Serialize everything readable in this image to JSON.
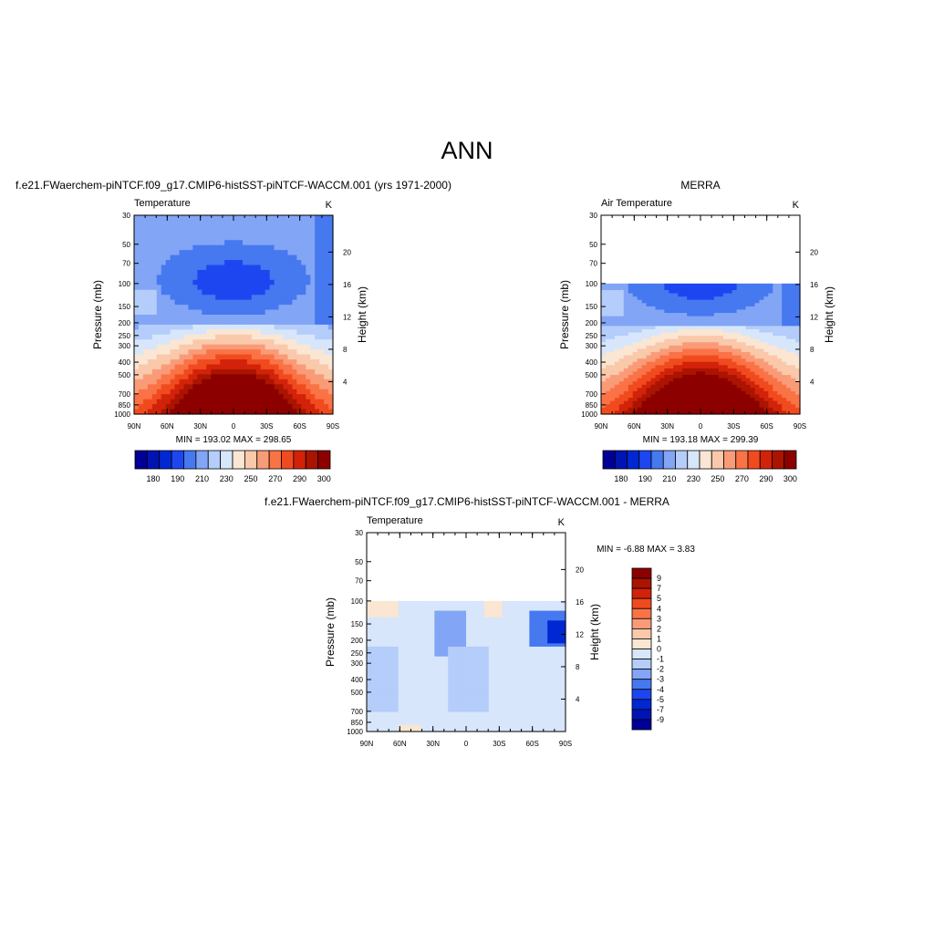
{
  "page": {
    "title": "ANN"
  },
  "panels": {
    "model": {
      "header": "f.e21.FWaerchem-piNTCF.f09_g17.CMIP6-histSST-piNTCF-WACCM.001 (yrs 1971-2000)",
      "left_label": "Temperature",
      "right_label": "K",
      "minmax": "MIN = 193.02  MAX = 298.65"
    },
    "obs": {
      "header": "MERRA",
      "left_label": "Air Temperature",
      "right_label": "K",
      "minmax": "MIN = 193.18  MAX = 299.39"
    },
    "diff": {
      "header": "f.e21.FWaerchem-piNTCF.f09_g17.CMIP6-histSST-piNTCF-WACCM.001 - MERRA",
      "left_label": "Temperature",
      "right_label": "K",
      "minmax": "MIN =  -6.88  MAX =   3.83"
    }
  },
  "axes": {
    "ylabel": "Pressure (mb)",
    "y2label": "Height (km)",
    "pressure_ticks": [
      "30",
      "50",
      "70",
      "100",
      "150",
      "200",
      "250",
      "300",
      "400",
      "500",
      "700",
      "850",
      "1000"
    ],
    "height_ticks": [
      "20",
      "16",
      "12",
      "8",
      "4"
    ],
    "lat_ticks": [
      "90N",
      "60N",
      "30N",
      "0",
      "30S",
      "60S",
      "90S"
    ]
  },
  "colors": {
    "temp_levels": [
      "#000096",
      "#0014b4",
      "#0028d2",
      "#1e46f0",
      "#4678f0",
      "#82a5f5",
      "#b4cdfa",
      "#d7e6fa",
      "#fae6d2",
      "#fac8aa",
      "#fa9b78",
      "#fa7346",
      "#f04b1e",
      "#d2230a",
      "#aa1400",
      "#8c0000"
    ],
    "diff_levels": [
      "#000096",
      "#0014b4",
      "#0028d2",
      "#1e46f0",
      "#4678f0",
      "#82a5f5",
      "#b4cdfa",
      "#d7e6fa",
      "#fae6d2",
      "#fac8aa",
      "#fa9b78",
      "#fa7346",
      "#f04b1e",
      "#d2230a",
      "#aa1400",
      "#8c0000"
    ]
  },
  "chart_data": [
    {
      "type": "heatmap",
      "title": "Temperature",
      "units": "K",
      "x": "latitude (90N to 90S)",
      "y": "pressure (mb), log scale",
      "xlim": [
        "90N",
        "90S"
      ],
      "ylim": [
        1000,
        30
      ],
      "min": 193.02,
      "max": 298.65,
      "colorbar_labels": [
        "180",
        "190",
        "210",
        "230",
        "250",
        "270",
        "290",
        "300"
      ]
    },
    {
      "type": "heatmap",
      "title": "Air Temperature",
      "units": "K",
      "x": "latitude (90N to 90S)",
      "y": "pressure (mb), log scale",
      "xlim": [
        "90N",
        "90S"
      ],
      "ylim": [
        1000,
        30
      ],
      "data_top_pressure": 100,
      "min": 193.18,
      "max": 299.39,
      "colorbar_labels": [
        "180",
        "190",
        "210",
        "230",
        "250",
        "270",
        "290",
        "300"
      ]
    },
    {
      "type": "heatmap",
      "title": "Temperature",
      "units": "K",
      "x": "latitude (90N to 90S)",
      "y": "pressure (mb), log scale",
      "xlim": [
        "90N",
        "90S"
      ],
      "ylim": [
        1000,
        30
      ],
      "data_top_pressure": 100,
      "min": -6.88,
      "max": 3.83,
      "colorbar_labels": [
        "9",
        "7",
        "5",
        "4",
        "3",
        "2",
        "1",
        "0",
        "-1",
        "-2",
        "-3",
        "-4",
        "-5",
        "-7",
        "-9"
      ]
    }
  ]
}
